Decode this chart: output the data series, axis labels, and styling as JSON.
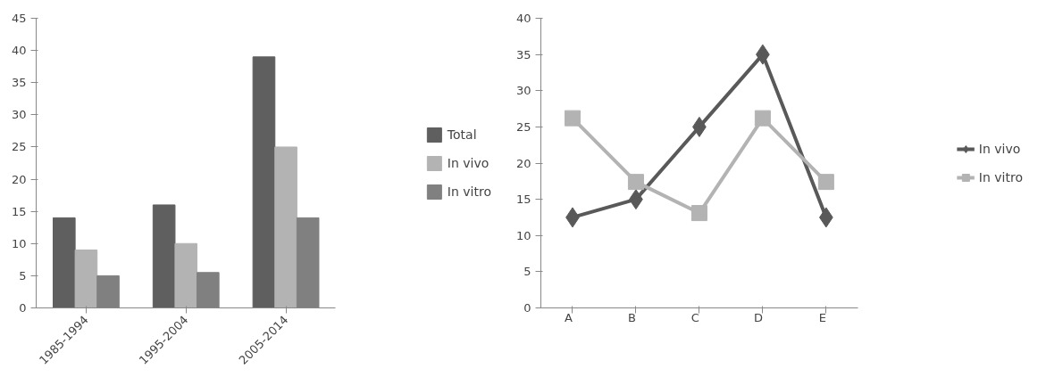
{
  "chart_data": [
    {
      "type": "bar",
      "categories": [
        "1985-1994",
        "1995-2004",
        "2005-2014"
      ],
      "ylim": [
        0,
        45
      ],
      "yticks": [
        0,
        5,
        10,
        15,
        20,
        25,
        30,
        35,
        40,
        45
      ],
      "grid": false,
      "legend": "right",
      "series": [
        {
          "name": "Total",
          "color": "#5f5f5f",
          "values": [
            14,
            16,
            39
          ]
        },
        {
          "name": "In vivo",
          "color": "#b3b3b3",
          "values": [
            9,
            10,
            25
          ]
        },
        {
          "name": "In vitro",
          "color": "#808080",
          "values": [
            5,
            5.5,
            14
          ]
        }
      ]
    },
    {
      "type": "line",
      "categories": [
        "A",
        "B",
        "C",
        "D",
        "E"
      ],
      "ylim": [
        0,
        40
      ],
      "yticks": [
        0,
        5,
        10,
        15,
        20,
        25,
        30,
        35,
        40
      ],
      "grid": false,
      "legend": "right",
      "series": [
        {
          "name": "In vivo",
          "color": "#595959",
          "marker": "diamond",
          "values": [
            12.5,
            15,
            25,
            35,
            12.5
          ]
        },
        {
          "name": "In vitro",
          "color": "#b3b3b3",
          "marker": "square",
          "values": [
            26.2,
            17.4,
            13.1,
            26.2,
            17.4
          ]
        }
      ]
    }
  ]
}
